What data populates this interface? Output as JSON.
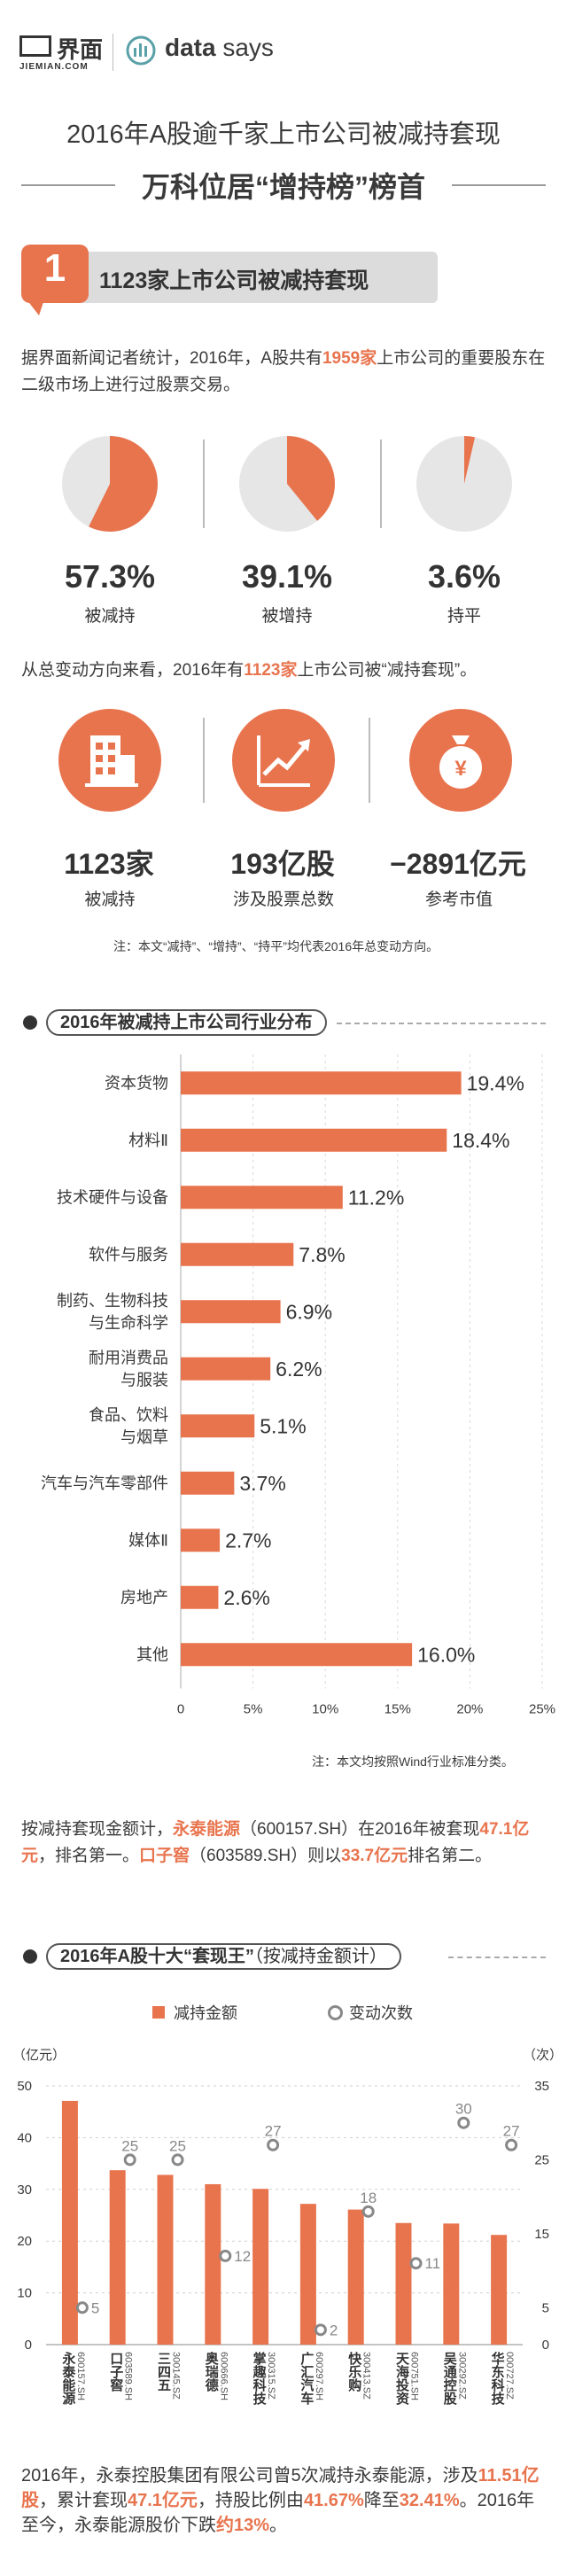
{
  "header": {
    "brand_name": "界面",
    "brand_sub": "JIEMIAN.COM",
    "datasays_bold": "data",
    "datasays_rest": " says",
    "title_line1": "2016年A股逾千家上市公司被减持套现",
    "title_line2": "万科位居“增持榜”榜首"
  },
  "section1": {
    "number": "1",
    "title": "1123家上市公司被减持套现",
    "intro_parts": [
      "据界面新闻记者统计，2016年，A股共有",
      "1959家",
      "上市公司的重要股东在二级市场上进行过股票交易。"
    ],
    "pies": [
      {
        "pct": "57.3%",
        "label": "被减持",
        "value": 57.3
      },
      {
        "pct": "39.1%",
        "label": "被增持",
        "value": 39.1
      },
      {
        "pct": "3.6%",
        "label": "持平",
        "value": 3.6
      }
    ],
    "direction_parts": [
      "从总变动方向来看，2016年有",
      "1123家",
      "上市公司被“减持套现”。"
    ],
    "stats": [
      {
        "icon": "building-icon",
        "value": "1123家",
        "label": "被减持"
      },
      {
        "icon": "rising-chart-icon",
        "value": "193亿股",
        "label": "涉及股票总数"
      },
      {
        "icon": "money-bag-icon",
        "value": "−2891亿元",
        "label": "参考市值"
      }
    ],
    "note": "注：本文“减持”、“增持”、“持平”均代表2016年总变动方向。",
    "colors": {
      "accent": "#e8744e",
      "pie_bg": "#e6e6e6"
    }
  },
  "industry": {
    "heading": "2016年被减持上市公司行业分布",
    "note": "注：本文均按照Wind行业标准分类。",
    "ticks": [
      "0",
      "5%",
      "10%",
      "15%",
      "20%",
      "25%"
    ]
  },
  "summary_parts": [
    "按减持套现金额计，",
    "永泰能源",
    "（600157.SH）在2016年被套现",
    "47.1亿元",
    "，排名第一。",
    "口子窖",
    "（603589.SH）则以",
    "33.7亿元",
    "排名第二。"
  ],
  "top10": {
    "heading": "2016年A股十大",
    "heading_quote": "“套现王”",
    "heading_suffix": "（按减持金额计）",
    "legend_amount": "减持金额",
    "legend_count": "变动次数",
    "left_unit": "（亿元）",
    "right_unit": "（次）",
    "left_ticks": [
      "0",
      "10",
      "20",
      "30",
      "40",
      "50"
    ],
    "right_ticks": [
      "0",
      "5",
      "15",
      "25",
      "35"
    ]
  },
  "footer_parts": [
    "2016年，永泰控股集团有限公司曾5次减持永泰能源，涉及",
    "11.51亿股",
    "，累计套现",
    "47.1亿元",
    "，持股比例由",
    "41.67%",
    "降至",
    "32.41%",
    "。2016年至今，永泰能源股价下跌",
    "约13%",
    "。"
  ],
  "chart_data": [
    {
      "type": "bar",
      "orientation": "horizontal",
      "title": "2016年被减持上市公司行业分布",
      "categories": [
        "资本货物",
        "材料Ⅱ",
        "技术硬件与设备",
        "软件与服务",
        "制药、生物科技\n与生命科学",
        "耐用消费品\n与服装",
        "食品、饮料\n与烟草",
        "汽车与汽车零部件",
        "媒体Ⅱ",
        "房地产",
        "其他"
      ],
      "values": [
        19.4,
        18.4,
        11.2,
        7.8,
        6.9,
        6.2,
        5.1,
        3.7,
        2.7,
        2.6,
        16.0
      ],
      "labels": [
        "19.4%",
        "18.4%",
        "11.2%",
        "7.8%",
        "6.9%",
        "6.2%",
        "5.1%",
        "3.7%",
        "2.7%",
        "2.6%",
        "16.0%"
      ],
      "xlim": [
        0,
        25
      ],
      "color": "#e8744e"
    },
    {
      "type": "bar",
      "title": "2016年A股十大“套现王”（按减持金额计）",
      "categories": [
        "永泰能源",
        "口子窖",
        "三四五",
        "奥瑞德",
        "掌趣科技",
        "广汇汽车",
        "快乐购",
        "天海投资",
        "吴通控股",
        "华东科技"
      ],
      "codes": [
        "600157.SH",
        "603589.SH",
        "300145.SZ",
        "600666.SH",
        "300315.SZ",
        "600297.SH",
        "300413.SZ",
        "600751.SH",
        "300292.SZ",
        "000727.SZ"
      ],
      "series": [
        {
          "name": "减持金额",
          "axis": "left",
          "values": [
            47.1,
            33.7,
            32.8,
            31.0,
            30.1,
            27.2,
            26.1,
            23.5,
            23.4,
            21.2
          ],
          "color": "#e8744e"
        },
        {
          "name": "变动次数",
          "axis": "right",
          "values": [
            5,
            25,
            25,
            12,
            27,
            2,
            18,
            11,
            30,
            27
          ],
          "color": "#888888"
        }
      ],
      "ylim_left": [
        0,
        50
      ],
      "ylim_right": [
        0,
        35
      ]
    }
  ]
}
